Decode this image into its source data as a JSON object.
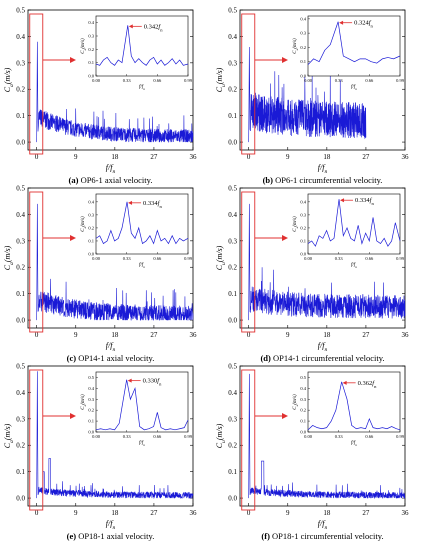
{
  "chart_data": [
    {
      "type": "line",
      "id": "a",
      "caption": {
        "letter": "(a)",
        "text": " OP6-1 axial velocity."
      },
      "xlabel": "f/fn",
      "ylabel": "Ca(m/s)",
      "ylabel_sub": "a",
      "xlim": [
        -2,
        36
      ],
      "ylim": [
        -0.03,
        0.5
      ],
      "xticks": [
        "0",
        "9",
        "18",
        "27",
        "36"
      ],
      "yticks": [
        "0.0",
        "0.1",
        "0.2",
        "0.3",
        "0.4",
        "0.5"
      ],
      "color": "#1a1ad6",
      "spectrum": {
        "spike": 0.38,
        "base": 0.1,
        "tail": 0.02,
        "noise": 0.04,
        "x_end": 36
      },
      "inset": {
        "ylabel": "Ca(m/s)",
        "xticks": [
          "0.00",
          "0.33",
          "0.66",
          "0.99"
        ],
        "yticks": [
          "0.0",
          "0.1",
          "0.2",
          "0.3",
          "0.4"
        ],
        "ylim": [
          0,
          0.45
        ],
        "annotation": "0.342fn",
        "peak_x": 0.342,
        "x": [
          0.0,
          0.04,
          0.08,
          0.12,
          0.16,
          0.2,
          0.24,
          0.28,
          0.342,
          0.38,
          0.42,
          0.46,
          0.5,
          0.54,
          0.58,
          0.62,
          0.66,
          0.7,
          0.74,
          0.78,
          0.82,
          0.86,
          0.9,
          0.94,
          0.99
        ],
        "y": [
          0.09,
          0.08,
          0.12,
          0.14,
          0.1,
          0.08,
          0.12,
          0.1,
          0.38,
          0.15,
          0.1,
          0.13,
          0.1,
          0.08,
          0.12,
          0.14,
          0.09,
          0.12,
          0.08,
          0.1,
          0.13,
          0.09,
          0.12,
          0.08,
          0.09
        ]
      }
    },
    {
      "type": "line",
      "id": "b",
      "caption": {
        "letter": "(b)",
        "text": " OP6-1 circumferential velocity."
      },
      "xlabel": "f/fn",
      "ylabel": "Cu(m/s)",
      "ylabel_sub": "u",
      "xlim": [
        -2,
        36
      ],
      "ylim": [
        -0.03,
        0.5
      ],
      "xticks": [
        "0",
        "9",
        "18",
        "27",
        "36"
      ],
      "yticks": [
        "0.0",
        "0.1",
        "0.2",
        "0.3",
        "0.4",
        "0.5"
      ],
      "color": "#1a1ad6",
      "spectrum": {
        "spike": 0.36,
        "base": 0.12,
        "tail": 0.08,
        "noise": 0.08,
        "x_end": 27
      },
      "inset": {
        "ylabel": "Cu(m/s)",
        "xticks": [
          "0.00",
          "0.33",
          "0.66",
          "0.99"
        ],
        "yticks": [
          "0.0",
          "0.1",
          "0.2",
          "0.3",
          "0.4"
        ],
        "ylim": [
          0,
          0.42
        ],
        "annotation": "0.324fn",
        "peak_x": 0.324,
        "x": [
          0.0,
          0.06,
          0.12,
          0.18,
          0.24,
          0.324,
          0.38,
          0.44,
          0.5,
          0.56,
          0.62,
          0.68,
          0.74,
          0.8,
          0.86,
          0.92,
          0.99
        ],
        "y": [
          0.08,
          0.12,
          0.1,
          0.18,
          0.22,
          0.38,
          0.14,
          0.12,
          0.1,
          0.12,
          0.12,
          0.1,
          0.09,
          0.12,
          0.13,
          0.12,
          0.14
        ]
      }
    },
    {
      "type": "line",
      "id": "c",
      "caption": {
        "letter": "(c)",
        "text": " OP14-1 axial velocity."
      },
      "xlabel": "f/fn",
      "ylabel": "Ca(m/s)",
      "ylabel_sub": "a",
      "xlim": [
        -2,
        36
      ],
      "ylim": [
        -0.03,
        0.5
      ],
      "xticks": [
        "0",
        "9",
        "18",
        "27",
        "36"
      ],
      "yticks": [
        "0.0",
        "0.1",
        "0.2",
        "0.3",
        "0.4",
        "0.5"
      ],
      "color": "#1a1ad6",
      "spectrum": {
        "spike": 0.44,
        "base": 0.08,
        "tail": 0.02,
        "noise": 0.05,
        "x_end": 36
      },
      "inset": {
        "ylabel": "Ca(m/s)",
        "xticks": [
          "0.00",
          "0.33",
          "0.66",
          "0.99"
        ],
        "yticks": [
          "0.0",
          "0.1",
          "0.2",
          "0.3",
          "0.4"
        ],
        "ylim": [
          0,
          0.46
        ],
        "annotation": "0.334fn",
        "peak_x": 0.334,
        "x": [
          0.0,
          0.04,
          0.08,
          0.12,
          0.16,
          0.2,
          0.24,
          0.28,
          0.334,
          0.38,
          0.42,
          0.46,
          0.5,
          0.54,
          0.58,
          0.62,
          0.66,
          0.7,
          0.74,
          0.78,
          0.82,
          0.86,
          0.9,
          0.94,
          0.99
        ],
        "y": [
          0.12,
          0.14,
          0.08,
          0.1,
          0.18,
          0.1,
          0.12,
          0.2,
          0.4,
          0.16,
          0.12,
          0.2,
          0.08,
          0.1,
          0.14,
          0.08,
          0.18,
          0.1,
          0.12,
          0.08,
          0.14,
          0.08,
          0.12,
          0.1,
          0.12
        ]
      }
    },
    {
      "type": "line",
      "id": "d",
      "caption": {
        "letter": "(d)",
        "text": " OP14-1 circumferential velocity."
      },
      "xlabel": "f/fn",
      "ylabel": "Cu(m/s)",
      "ylabel_sub": "u",
      "xlim": [
        -2,
        36
      ],
      "ylim": [
        -0.03,
        0.5
      ],
      "xticks": [
        "0",
        "9",
        "18",
        "27",
        "36"
      ],
      "yticks": [
        "0.0",
        "0.1",
        "0.2",
        "0.3",
        "0.4",
        "0.5"
      ],
      "color": "#1a1ad6",
      "spectrum": {
        "spike": 0.44,
        "base": 0.08,
        "tail": 0.05,
        "noise": 0.06,
        "x_end": 36
      },
      "inset": {
        "ylabel": "Cu(m/s)",
        "xticks": [
          "0.00",
          "0.33",
          "0.66",
          "0.99"
        ],
        "yticks": [
          "0.0",
          "0.1",
          "0.2",
          "0.3",
          "0.4"
        ],
        "ylim": [
          0,
          0.46
        ],
        "annotation": "0.334fn",
        "peak_x": 0.334,
        "x": [
          0.0,
          0.04,
          0.08,
          0.12,
          0.16,
          0.2,
          0.24,
          0.28,
          0.334,
          0.38,
          0.42,
          0.46,
          0.5,
          0.54,
          0.58,
          0.62,
          0.66,
          0.7,
          0.74,
          0.78,
          0.82,
          0.86,
          0.9,
          0.94,
          0.99
        ],
        "y": [
          0.08,
          0.1,
          0.06,
          0.14,
          0.12,
          0.18,
          0.1,
          0.12,
          0.42,
          0.14,
          0.2,
          0.12,
          0.1,
          0.22,
          0.08,
          0.16,
          0.1,
          0.28,
          0.1,
          0.08,
          0.12,
          0.06,
          0.1,
          0.24,
          0.1
        ]
      }
    },
    {
      "type": "line",
      "id": "e",
      "caption": {
        "letter": "(e)",
        "text": " OP18-1 axial velocity."
      },
      "xlabel": "f/fn",
      "ylabel": "Ca(m/s)",
      "ylabel_sub": "a",
      "xlim": [
        -2,
        36
      ],
      "ylim": [
        -0.03,
        0.5
      ],
      "xticks": [
        "0",
        "9",
        "18",
        "27",
        "36"
      ],
      "yticks": [
        "0.0",
        "0.1",
        "0.2",
        "0.3",
        "0.4",
        "0.5"
      ],
      "color": "#1a1ad6",
      "spectrum": {
        "spike": 0.48,
        "base": 0.03,
        "tail": 0.01,
        "noise": 0.02,
        "x_end": 36
      },
      "inset": {
        "ylabel": "Ca(m/s)",
        "xticks": [
          "0.00",
          "0.33",
          "0.66",
          "0.99"
        ],
        "yticks": [
          "0.0",
          "0.1",
          "0.2",
          "0.3",
          "0.4",
          "0.5"
        ],
        "ylim": [
          0,
          0.55
        ],
        "annotation": "0.330fn",
        "peak_x": 0.33,
        "x": [
          0.0,
          0.05,
          0.1,
          0.15,
          0.2,
          0.25,
          0.33,
          0.37,
          0.42,
          0.47,
          0.52,
          0.57,
          0.62,
          0.66,
          0.7,
          0.75,
          0.8,
          0.85,
          0.9,
          0.95,
          0.99
        ],
        "y": [
          0.02,
          0.03,
          0.02,
          0.03,
          0.02,
          0.08,
          0.48,
          0.3,
          0.4,
          0.05,
          0.02,
          0.03,
          0.05,
          0.18,
          0.04,
          0.02,
          0.03,
          0.02,
          0.03,
          0.04,
          0.11
        ]
      }
    },
    {
      "type": "line",
      "id": "f",
      "caption": {
        "letter": "(f)",
        "text": " OP18-1 circumferential velocity."
      },
      "xlabel": "f/fn",
      "ylabel": "Cu(m/s)",
      "ylabel_sub": "u",
      "xlim": [
        -2,
        36
      ],
      "ylim": [
        -0.03,
        0.5
      ],
      "xticks": [
        "0",
        "9",
        "18",
        "27",
        "36"
      ],
      "yticks": [
        "0.0",
        "0.1",
        "0.2",
        "0.3",
        "0.4",
        "0.5"
      ],
      "color": "#1a1ad6",
      "spectrum": {
        "spike": 0.47,
        "base": 0.03,
        "tail": 0.01,
        "noise": 0.02,
        "x_end": 36
      },
      "inset": {
        "ylabel": "Cu(m/s)",
        "xticks": [
          "0.00",
          "0.33",
          "0.66",
          "0.99"
        ],
        "yticks": [
          "0.0",
          "0.1",
          "0.2",
          "0.3",
          "0.4",
          "0.5"
        ],
        "ylim": [
          0,
          0.55
        ],
        "annotation": "0.362fn",
        "peak_x": 0.362,
        "x": [
          0.0,
          0.05,
          0.1,
          0.15,
          0.2,
          0.25,
          0.3,
          0.362,
          0.42,
          0.47,
          0.52,
          0.57,
          0.62,
          0.66,
          0.7,
          0.75,
          0.8,
          0.85,
          0.9,
          0.95,
          0.99
        ],
        "y": [
          0.02,
          0.06,
          0.04,
          0.03,
          0.04,
          0.1,
          0.2,
          0.46,
          0.3,
          0.06,
          0.03,
          0.04,
          0.03,
          0.12,
          0.04,
          0.03,
          0.04,
          0.03,
          0.05,
          0.03,
          0.02
        ]
      }
    }
  ]
}
